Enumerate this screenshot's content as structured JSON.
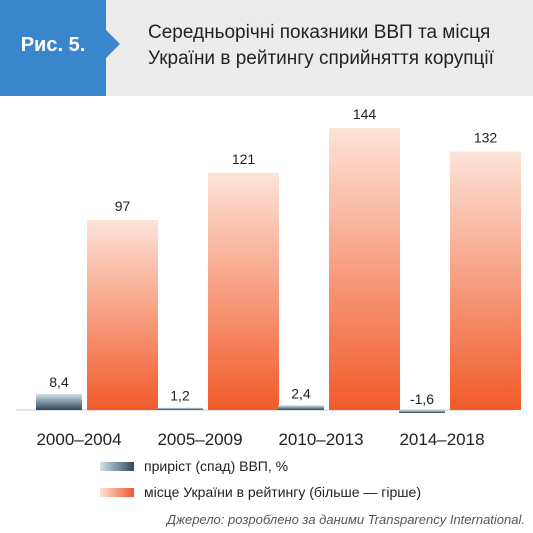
{
  "figure_label": "Рис. 5.",
  "title_lines": [
    "Середньорічні показники ВВП та місця",
    "України  в рейтингу сприйняття корупції"
  ],
  "source_note": "Джерело: розроблено за даними Transparency International.",
  "colors": {
    "header_bg": "#ececec",
    "figure_tag": "#3a86cc",
    "gdp_dark": "#2e4a5e",
    "gdp_light": "#cfe0ea",
    "rank_strong": "#f15a29",
    "rank_light": "#fde3d8"
  },
  "chart_data": {
    "type": "bar",
    "title": "Середньорічні показники ВВП та місця України  в рейтингу сприйняття корупції",
    "xlabel": "",
    "ylabel": "",
    "categories": [
      "2000–2004",
      "2005–2009",
      "2010–2013",
      "2014–2018"
    ],
    "series": [
      {
        "name": "приріст (спад) ВВП, %",
        "values": [
          8.4,
          1.2,
          2.4,
          -1.6
        ],
        "value_labels": [
          "8,4",
          "1,2",
          "2,4",
          "-1,6"
        ]
      },
      {
        "name": "місце України в рейтингу (більше — гірше)",
        "values": [
          97,
          121,
          144,
          132
        ],
        "value_labels": [
          "97",
          "121",
          "144",
          "132"
        ]
      }
    ],
    "ylim": [
      -1.6,
      144
    ],
    "grid": false,
    "legend_position": "bottom-left"
  }
}
